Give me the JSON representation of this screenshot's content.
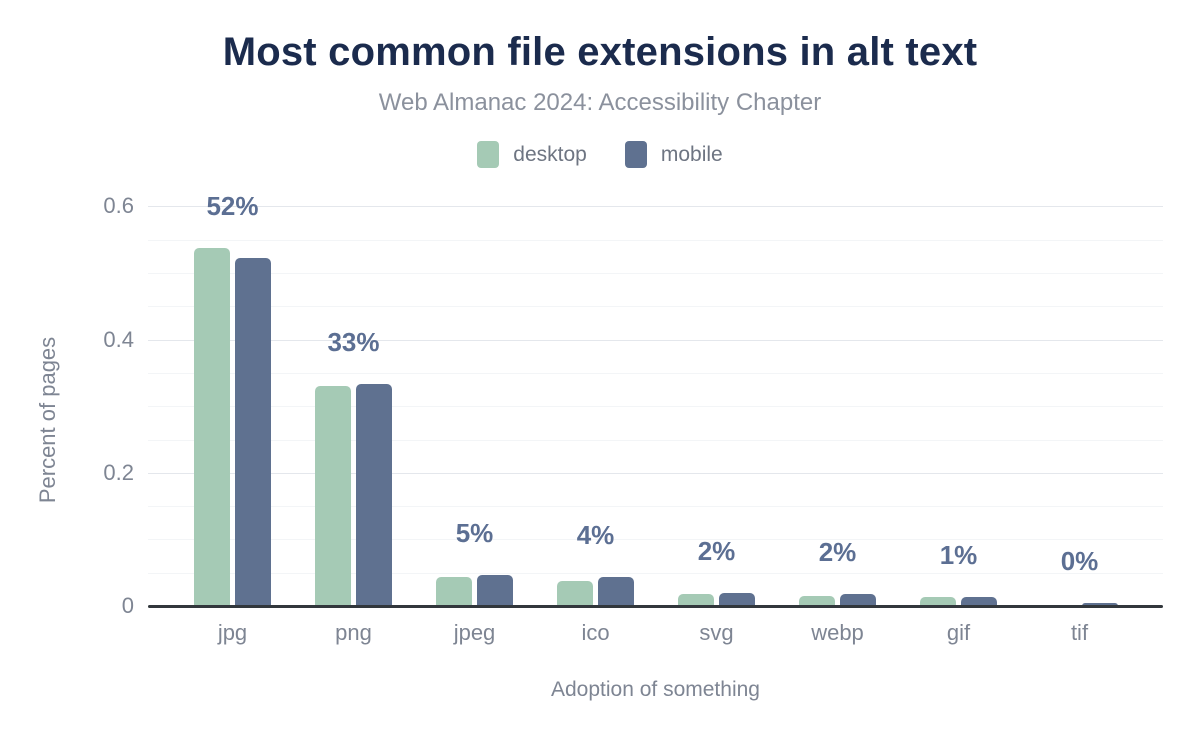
{
  "header": {
    "title": "Most common file extensions in alt text",
    "subtitle": "Web Almanac 2024: Accessibility Chapter"
  },
  "legend": [
    {
      "label": "desktop",
      "color": "#a5cab5"
    },
    {
      "label": "mobile",
      "color": "#5f7190"
    }
  ],
  "colors": {
    "background": "#ffffff",
    "title_text": "#1b2b4d",
    "subtitle_text": "#8b919d",
    "axis_text": "#7e8593",
    "data_label_text": "#5c6f93",
    "axis_line": "#32373c",
    "grid_major": "#e4e7ec",
    "grid_minor": "#f3f5f7",
    "desktop_bar": "#a5cab5",
    "mobile_bar": "#5f7190"
  },
  "chart_data": {
    "type": "bar",
    "title": "Most common file extensions in alt text",
    "subtitle": "Web Almanac 2024: Accessibility Chapter",
    "categories": [
      "jpg",
      "png",
      "jpeg",
      "ico",
      "svg",
      "webp",
      "gif",
      "tif"
    ],
    "series": [
      {
        "name": "desktop",
        "color": "#a5cab5",
        "values": [
          0.537,
          0.331,
          0.044,
          0.037,
          0.018,
          0.015,
          0.013,
          0.001
        ]
      },
      {
        "name": "mobile",
        "color": "#5f7190",
        "values": [
          0.522,
          0.334,
          0.047,
          0.043,
          0.019,
          0.018,
          0.014,
          0.005
        ]
      }
    ],
    "data_labels": [
      "52%",
      "33%",
      "5%",
      "4%",
      "2%",
      "2%",
      "1%",
      "0%"
    ],
    "xlabel": "Adoption of something",
    "ylabel": "Percent of pages",
    "yticks": [
      0,
      0.2,
      0.4,
      0.6
    ],
    "ytick_labels": [
      "0",
      "0.2",
      "0.4",
      "0.6"
    ],
    "ylim": [
      0,
      0.6
    ],
    "minor_grid_step": 0.05,
    "grid": true,
    "legend_position": "top"
  }
}
